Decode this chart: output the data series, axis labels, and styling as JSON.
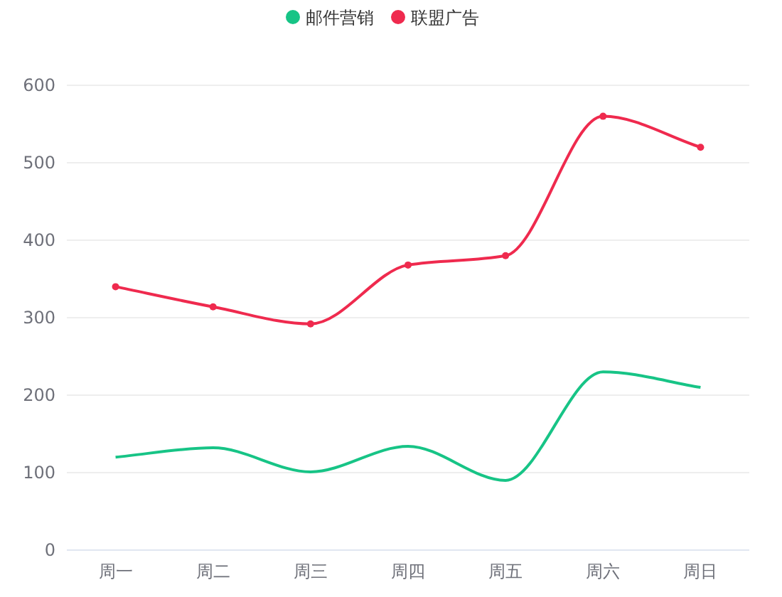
{
  "chart_data": {
    "type": "line",
    "categories": [
      "周一",
      "周二",
      "周三",
      "周四",
      "周五",
      "周六",
      "周日"
    ],
    "series": [
      {
        "name": "邮件营销",
        "color": "#17c486",
        "marker": "none",
        "values": [
          120,
          132,
          101,
          134,
          90,
          230,
          210
        ]
      },
      {
        "name": "联盟广告",
        "color": "#ef2a4e",
        "marker": "circle",
        "values": [
          340,
          314,
          292,
          368,
          380,
          560,
          520
        ]
      }
    ],
    "ylim": [
      0,
      600
    ],
    "yticks": [
      0,
      100,
      200,
      300,
      400,
      500,
      600
    ],
    "grid": "y",
    "legend": "top"
  }
}
